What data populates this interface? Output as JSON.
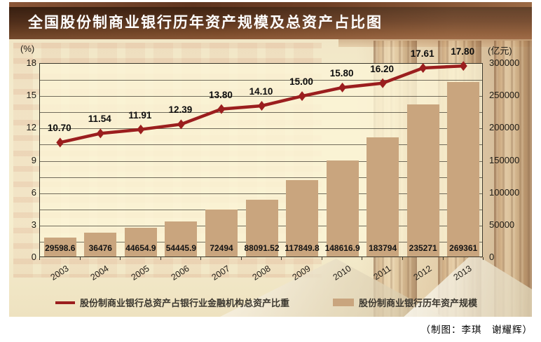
{
  "title": "全国股份制商业银行历年资产规模及总资产占比图",
  "credit": "（制图：李琪　谢耀辉）",
  "colors": {
    "line": "#9b1e1e",
    "bar": "#c9a57e",
    "banner": "#5c351e",
    "plot_bg": "#fbf4d6",
    "grid": "#3c382c"
  },
  "legend": [
    {
      "id": "line",
      "label": "股份制商业银行总资产占银行业金融机构总资产比重"
    },
    {
      "id": "bar",
      "label": "股份制商业银行历年资产规模"
    }
  ],
  "chart_data": {
    "type": "combo_bar_line",
    "title": "全国股份制商业银行历年资产规模及总资产占比图",
    "categories": [
      "2003",
      "2004",
      "2005",
      "2006",
      "2007",
      "2008",
      "2009",
      "2010",
      "2011",
      "2012",
      "2013"
    ],
    "series": [
      {
        "name": "股份制商业银行历年资产规模",
        "type": "bar",
        "axis": "right",
        "unit": "亿元",
        "color": "#c9a57e",
        "values": [
          29598.6,
          36476,
          44654.9,
          54445.9,
          72494,
          88091.52,
          117849.8,
          148616.9,
          183794,
          235271,
          269361
        ],
        "labels": [
          "29598.6",
          "36476",
          "44654.9",
          "54445.9",
          "72494",
          "88091.52",
          "117849.8",
          "148616.9",
          "183794",
          "235271",
          "269361"
        ]
      },
      {
        "name": "股份制商业银行总资产占银行业金融机构总资产比重",
        "type": "line",
        "axis": "left",
        "unit": "%",
        "color": "#9b1e1e",
        "values": [
          10.7,
          11.54,
          11.91,
          12.39,
          13.8,
          14.1,
          15.0,
          15.8,
          16.2,
          17.61,
          17.8
        ],
        "labels": [
          "10.70",
          "11.54",
          "11.91",
          "12.39",
          "13.80",
          "14.10",
          "15.00",
          "15.80",
          "16.20",
          "17.61",
          "17.80"
        ]
      }
    ],
    "left_axis": {
      "title": "(%)",
      "min": 0,
      "max": 18,
      "major_ticks": [
        "0",
        "3",
        "6",
        "9",
        "12",
        "15",
        "18"
      ],
      "minor_step": 1.5
    },
    "right_axis": {
      "title": "(亿元)",
      "min": 0,
      "max": 300000,
      "major_ticks": [
        "0",
        "50000",
        "100000",
        "150000",
        "200000",
        "250000",
        "300000"
      ]
    },
    "grid": "horizontal gridlines every 1.5% (= 25000亿元), dark thin lines",
    "legend_position": "bottom"
  }
}
